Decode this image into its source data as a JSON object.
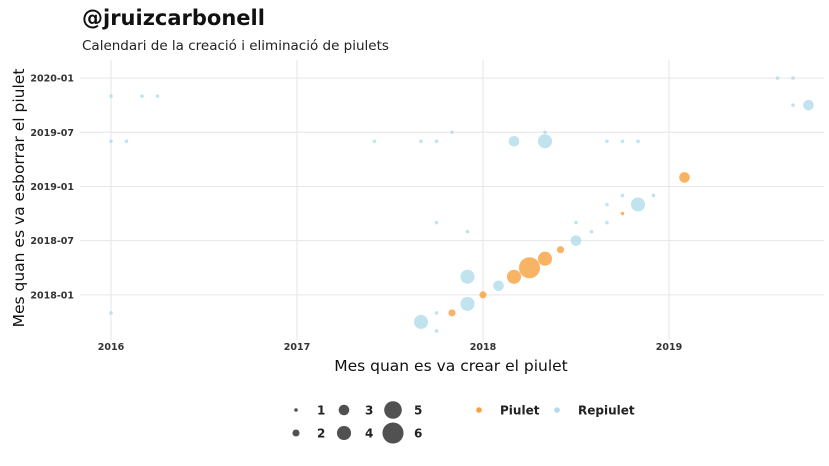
{
  "chart_data": {
    "type": "scatter",
    "title": "@jruizcarbonell",
    "subtitle": "Calendari de la creació i eliminació de piulets",
    "xlabel": "Mes quan es va crear el piulet",
    "ylabel": "Mes quan es va esborrar el piulet",
    "x_ticks": [
      "2016",
      "2017",
      "2018",
      "2019"
    ],
    "y_ticks": [
      "2018-01",
      "2018-07",
      "2019-01",
      "2019-07",
      "2020-01"
    ],
    "xlim": [
      "2015-11",
      "2019-11"
    ],
    "ylim": [
      "2017-08",
      "2020-03"
    ],
    "grid": true,
    "legend_position": "bottom",
    "colors": {
      "Piulet": "#f7962a",
      "Repiulet": "#a9d8e8"
    },
    "size_legend": {
      "values": [
        1,
        2,
        3,
        4,
        5,
        6
      ]
    },
    "series": [
      {
        "name": "Piulet",
        "points": [
          {
            "x": "2017-11",
            "y": "2017-11",
            "n": 2
          },
          {
            "x": "2018-01",
            "y": "2018-01",
            "n": 2
          },
          {
            "x": "2018-03",
            "y": "2018-03",
            "n": 4
          },
          {
            "x": "2018-04",
            "y": "2018-04",
            "n": 6
          },
          {
            "x": "2018-05",
            "y": "2018-05",
            "n": 4
          },
          {
            "x": "2018-06",
            "y": "2018-06",
            "n": 2
          },
          {
            "x": "2018-10",
            "y": "2018-10",
            "n": 1
          },
          {
            "x": "2019-02",
            "y": "2019-02",
            "n": 3
          }
        ]
      },
      {
        "name": "Repiulet",
        "points": [
          {
            "x": "2016-01",
            "y": "2019-11",
            "n": 1
          },
          {
            "x": "2016-03",
            "y": "2019-11",
            "n": 1
          },
          {
            "x": "2016-04",
            "y": "2019-11",
            "n": 1
          },
          {
            "x": "2016-01",
            "y": "2019-06",
            "n": 1
          },
          {
            "x": "2016-02",
            "y": "2019-06",
            "n": 1
          },
          {
            "x": "2016-01",
            "y": "2017-11",
            "n": 1
          },
          {
            "x": "2017-06",
            "y": "2019-06",
            "n": 1
          },
          {
            "x": "2017-09",
            "y": "2019-06",
            "n": 1
          },
          {
            "x": "2017-10",
            "y": "2019-06",
            "n": 1
          },
          {
            "x": "2017-11",
            "y": "2019-07",
            "n": 1
          },
          {
            "x": "2018-03",
            "y": "2019-06",
            "n": 3
          },
          {
            "x": "2018-05",
            "y": "2019-06",
            "n": 4
          },
          {
            "x": "2018-05",
            "y": "2019-07",
            "n": 1
          },
          {
            "x": "2018-09",
            "y": "2019-06",
            "n": 1
          },
          {
            "x": "2018-10",
            "y": "2019-06",
            "n": 1
          },
          {
            "x": "2018-11",
            "y": "2019-06",
            "n": 1
          },
          {
            "x": "2017-10",
            "y": "2018-09",
            "n": 1
          },
          {
            "x": "2017-12",
            "y": "2018-08",
            "n": 1
          },
          {
            "x": "2018-07",
            "y": "2018-09",
            "n": 1
          },
          {
            "x": "2018-08",
            "y": "2018-08",
            "n": 1
          },
          {
            "x": "2018-09",
            "y": "2018-09",
            "n": 1
          },
          {
            "x": "2018-09",
            "y": "2018-11",
            "n": 1
          },
          {
            "x": "2018-10",
            "y": "2018-12",
            "n": 1
          },
          {
            "x": "2018-11",
            "y": "2018-11",
            "n": 4
          },
          {
            "x": "2018-12",
            "y": "2018-12",
            "n": 1
          },
          {
            "x": "2018-07",
            "y": "2018-07",
            "n": 3
          },
          {
            "x": "2017-12",
            "y": "2018-03",
            "n": 4
          },
          {
            "x": "2018-02",
            "y": "2018-02",
            "n": 3
          },
          {
            "x": "2017-12",
            "y": "2017-12",
            "n": 4
          },
          {
            "x": "2017-10",
            "y": "2017-11",
            "n": 1
          },
          {
            "x": "2017-10",
            "y": "2017-09",
            "n": 1
          },
          {
            "x": "2017-09",
            "y": "2017-10",
            "n": 4
          },
          {
            "x": "2019-08",
            "y": "2020-01",
            "n": 1
          },
          {
            "x": "2019-09",
            "y": "2020-01",
            "n": 1
          },
          {
            "x": "2019-09",
            "y": "2019-10",
            "n": 1
          },
          {
            "x": "2019-10",
            "y": "2019-10",
            "n": 3
          }
        ]
      }
    ]
  }
}
